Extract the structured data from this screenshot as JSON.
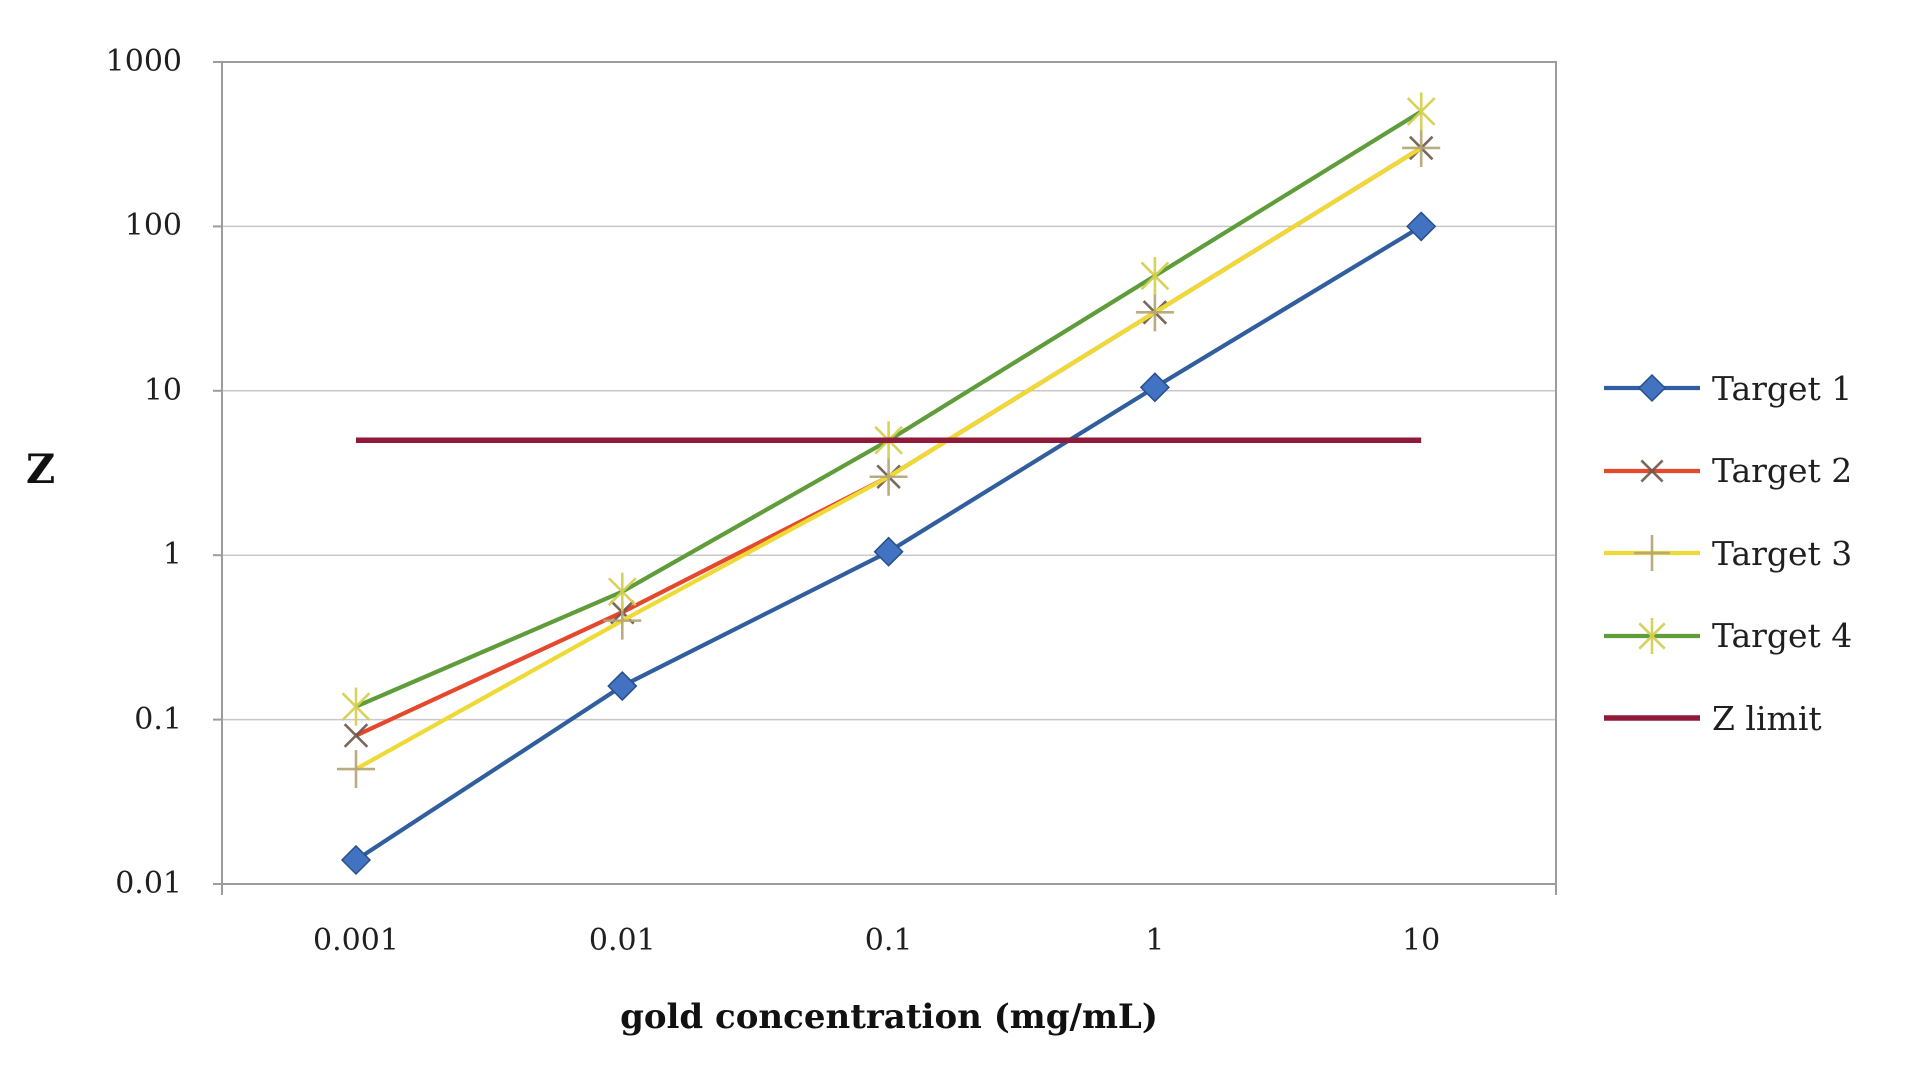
{
  "figure": {
    "y_axis_label": "Z",
    "x_axis_label": "gold concentration (mg/mL)"
  },
  "chart_data": {
    "type": "line",
    "x_scale": "log",
    "y_scale": "log",
    "title": "",
    "xlabel": "gold concentration (mg/mL)",
    "ylabel": "Z",
    "x": [
      0.001,
      0.01,
      0.1,
      1,
      10
    ],
    "x_tick_labels": [
      "0.001",
      "0.01",
      "0.1",
      "1",
      "10"
    ],
    "y_tick_values": [
      1000,
      100,
      10,
      1,
      0.1,
      0.01
    ],
    "y_tick_labels": [
      "1000",
      "100",
      "10",
      "1",
      "0.1",
      "0.01"
    ],
    "xlim": [
      0.000316,
      31.6
    ],
    "ylim": [
      0.01,
      1000
    ],
    "grid": "horizontal-major",
    "legend_position": "right",
    "series": [
      {
        "name": "Target 1",
        "marker": "diamond",
        "line_color": "#305E9E",
        "marker_color": "#4272C2",
        "marker_edge": "#28508C",
        "values": [
          0.014,
          0.16,
          1.05,
          10.5,
          100
        ]
      },
      {
        "name": "Target 2",
        "marker": "x",
        "line_color": "#E5492D",
        "marker_color": "#6A594B",
        "marker_edge": "#6A594B",
        "values": [
          0.08,
          0.45,
          3,
          30,
          300
        ]
      },
      {
        "name": "Target 3",
        "marker": "plus",
        "line_color": "#EFD935",
        "marker_color": "#B3A472",
        "marker_edge": "#B3A472",
        "values": [
          0.05,
          0.4,
          3,
          30,
          300
        ]
      },
      {
        "name": "Target 4",
        "marker": "asterisk",
        "line_color": "#5F9C3A",
        "marker_color": "#D6D053",
        "marker_edge": "#D6D053",
        "values": [
          0.12,
          0.6,
          5,
          50,
          500
        ]
      },
      {
        "name": "Z limit",
        "marker": "none",
        "line_color": "#8F1A39",
        "marker_color": "#8F1A39",
        "marker_edge": "#8F1A39",
        "values": [
          5,
          5,
          5,
          5,
          5
        ]
      }
    ],
    "annotations": []
  },
  "style_colors": {
    "grid": "#c8c8c8",
    "plot_border": "#9c9c9c",
    "background": "#ffffff"
  }
}
